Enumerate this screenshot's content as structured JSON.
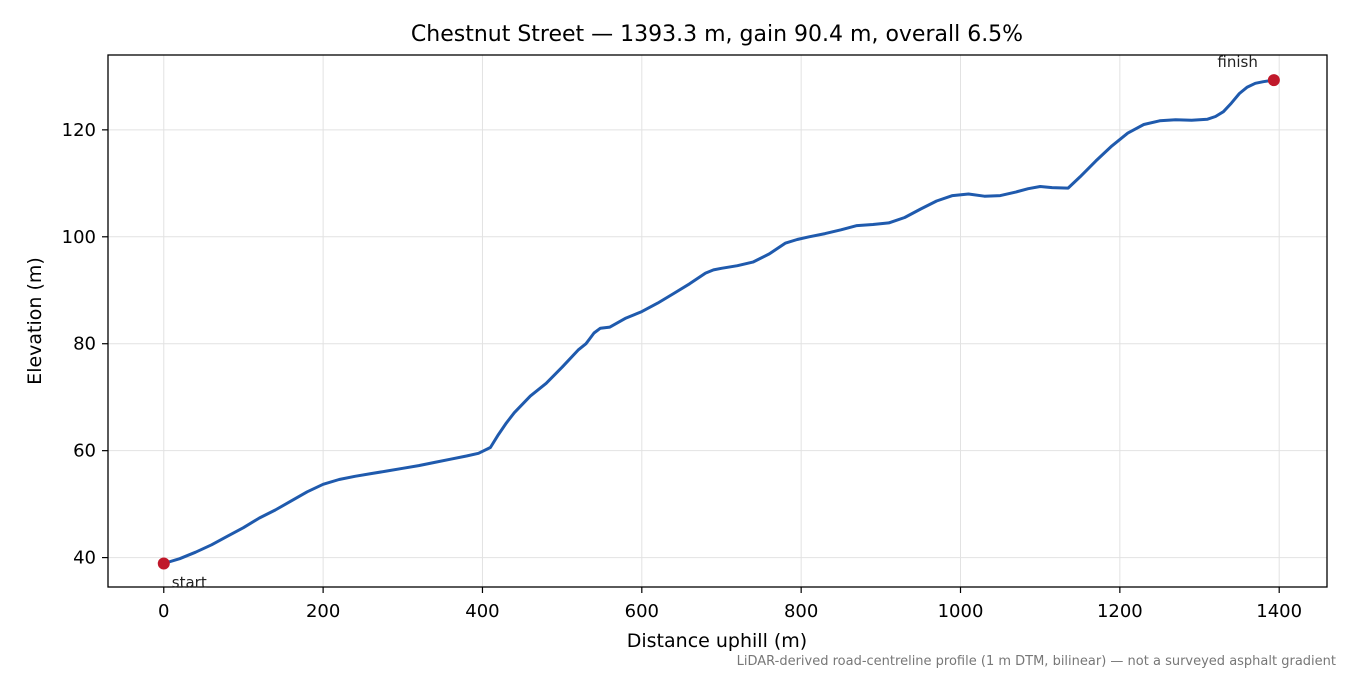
{
  "chart_data": {
    "type": "line",
    "title": "Chestnut Street — 1393.3 m, gain 90.4 m, overall 6.5%",
    "xlabel": "Distance uphill (m)",
    "ylabel": "Elevation (m)",
    "xlim": [
      -70,
      1460
    ],
    "ylim": [
      34.5,
      134
    ],
    "xticks": [
      0,
      200,
      400,
      600,
      800,
      1000,
      1200,
      1400
    ],
    "yticks": [
      40,
      60,
      80,
      100,
      120
    ],
    "grid": true,
    "series": [
      {
        "color": "#1f5aad",
        "x": [
          0,
          20,
          40,
          60,
          80,
          100,
          120,
          140,
          160,
          180,
          200,
          220,
          240,
          260,
          280,
          300,
          320,
          340,
          360,
          380,
          395,
          410,
          420,
          430,
          440,
          460,
          480,
          500,
          520,
          530,
          535,
          540,
          548,
          560,
          580,
          600,
          620,
          640,
          660,
          680,
          690,
          700,
          720,
          740,
          760,
          780,
          795,
          810,
          830,
          850,
          870,
          890,
          910,
          930,
          950,
          970,
          990,
          1010,
          1030,
          1050,
          1070,
          1085,
          1100,
          1115,
          1135,
          1150,
          1170,
          1190,
          1210,
          1230,
          1250,
          1270,
          1290,
          1310,
          1320,
          1330,
          1340,
          1350,
          1360,
          1370,
          1380,
          1393.3
        ],
        "y": [
          38.9,
          39.8,
          41.0,
          42.4,
          44.0,
          45.6,
          47.4,
          48.9,
          50.6,
          52.3,
          53.7,
          54.6,
          55.2,
          55.7,
          56.2,
          56.7,
          57.2,
          57.8,
          58.4,
          59.0,
          59.5,
          60.6,
          63.0,
          65.2,
          67.1,
          70.2,
          72.6,
          75.6,
          78.8,
          80.0,
          81.0,
          82.0,
          82.9,
          83.1,
          84.8,
          86.0,
          87.6,
          89.4,
          91.2,
          93.2,
          93.8,
          94.1,
          94.6,
          95.3,
          96.8,
          98.8,
          99.5,
          100.0,
          100.6,
          101.3,
          102.1,
          102.3,
          102.6,
          103.6,
          105.2,
          106.7,
          107.7,
          108.0,
          107.6,
          107.7,
          108.4,
          109.0,
          109.4,
          109.2,
          109.1,
          111.2,
          114.2,
          117.0,
          119.4,
          121.0,
          121.7,
          121.9,
          121.8,
          122.0,
          122.5,
          123.4,
          125.0,
          126.8,
          128.0,
          128.7,
          129.0,
          129.3
        ]
      }
    ],
    "annotations": [
      {
        "text": "start",
        "x": 0,
        "y": 38.9,
        "color": "#c0182a"
      },
      {
        "text": "finish",
        "x": 1393.3,
        "y": 129.3,
        "color": "#c0182a"
      }
    ]
  },
  "footnote": "LiDAR-derived road-centreline profile (1 m DTM, bilinear) — not a surveyed asphalt gradient"
}
